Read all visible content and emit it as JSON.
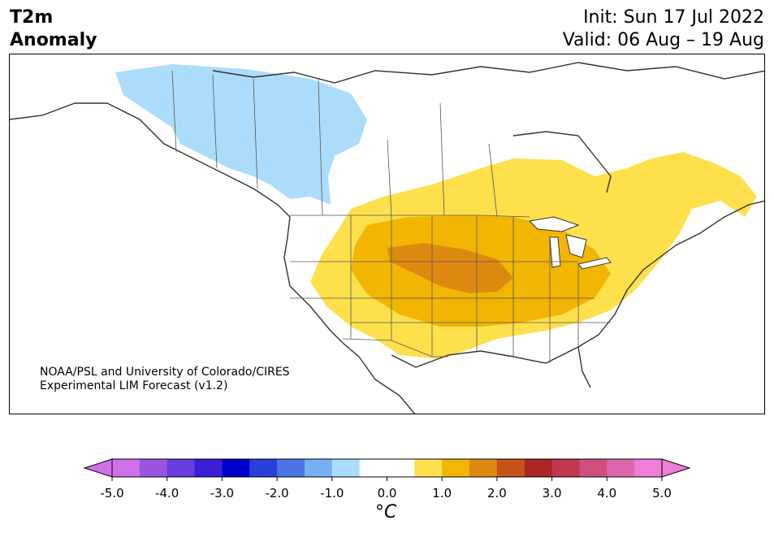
{
  "header": {
    "title_line1": "T2m",
    "title_line2": "Anomaly",
    "init": "Init: Sun 17 Jul 2022",
    "valid": "Valid: 06 Aug – 19 Aug"
  },
  "map": {
    "credit_line1": "NOAA/PSL and University of Colorado/CIRES",
    "credit_line2": "Experimental LIM Forecast (v1.2)"
  },
  "colorbar": {
    "unit": "°C",
    "tick_labels": [
      "-5.0",
      "-4.0",
      "-3.0",
      "-2.0",
      "-1.0",
      "0.0",
      "1.0",
      "2.0",
      "3.0",
      "4.0",
      "5.0"
    ],
    "colors": [
      "#d070e8",
      "#9955dd",
      "#6a3cdb",
      "#3b1fd6",
      "#0000cc",
      "#2a3edb",
      "#4a73e8",
      "#77b0f2",
      "#acdcfb",
      "#ffffff",
      "#ffffff",
      "#fee04d",
      "#f2b503",
      "#de8a10",
      "#c5531a",
      "#ad2626",
      "#c0394e",
      "#cf4f80",
      "#de66ad",
      "#ee7ed8"
    ],
    "extend_min_color": "#d070e8",
    "extend_max_color": "#ee7ed8"
  },
  "anomaly_colors": {
    "cool": "#acdcfb",
    "warm_light": "#fee04d",
    "warm_mid": "#f2b503",
    "warm_high": "#de8a10"
  }
}
